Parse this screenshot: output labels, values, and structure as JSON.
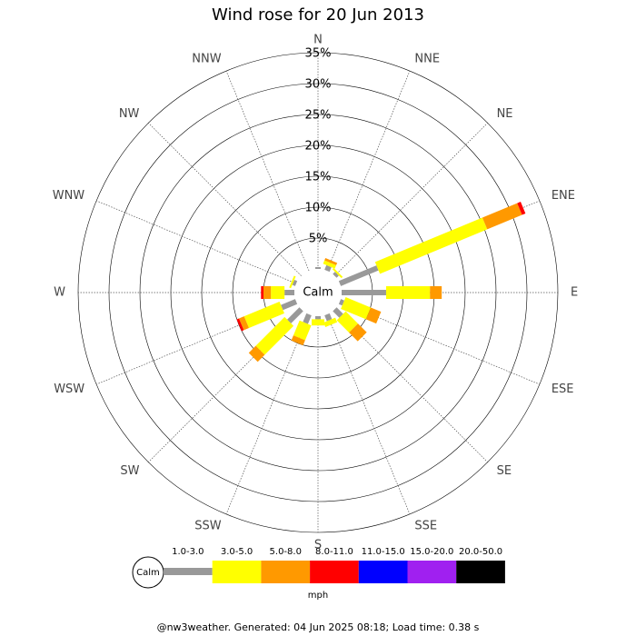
{
  "chart_data": {
    "type": "windrose",
    "title": "Wind rose for 20 Jun 2013",
    "categories": [
      "N",
      "NNE",
      "NE",
      "ENE",
      "E",
      "ESE",
      "SE",
      "SSE",
      "S",
      "SSW",
      "SW",
      "WSW",
      "W",
      "WNW",
      "NW",
      "NNW"
    ],
    "series": [
      {
        "name": "1.0-3.0",
        "color": "#999999",
        "values": [
          0.3,
          0.8,
          0.5,
          6.6,
          7.2,
          0.6,
          1.5,
          1.0,
          0.5,
          1.5,
          2.8,
          2.5,
          1.6,
          0.5,
          0,
          0
        ]
      },
      {
        "name": "3.0-5.0",
        "color": "#ffff00",
        "values": [
          0,
          0.6,
          0.3,
          18.8,
          7.1,
          4.4,
          2.8,
          0.8,
          1.0,
          2.6,
          6.6,
          6.2,
          2.2,
          0.3,
          0,
          0
        ]
      },
      {
        "name": "5.0-8.0",
        "color": "#ff9900",
        "values": [
          0,
          0.4,
          0,
          6.1,
          1.9,
          1.8,
          2.0,
          0,
          0,
          0.9,
          1.6,
          0.9,
          1.2,
          0,
          0,
          0
        ]
      },
      {
        "name": "8.0-11.0",
        "color": "#ff0000",
        "values": [
          0,
          0,
          0,
          0.6,
          0,
          0,
          0,
          0,
          0,
          0,
          0,
          0.4,
          0.4,
          0,
          0,
          0
        ]
      },
      {
        "name": "11.0-15.0",
        "color": "#0000ff",
        "values": [
          0,
          0,
          0,
          0,
          0,
          0,
          0,
          0,
          0,
          0,
          0,
          0,
          0,
          0,
          0,
          0
        ]
      },
      {
        "name": "15.0-20.0",
        "color": "#a020f0",
        "values": [
          0,
          0,
          0,
          0,
          0,
          0,
          0,
          0,
          0,
          0,
          0,
          0,
          0,
          0,
          0,
          0
        ]
      },
      {
        "name": "20.0-50.0",
        "color": "#000000",
        "values": [
          0,
          0,
          0,
          0,
          0,
          0,
          0,
          0,
          0,
          0,
          0,
          0,
          0,
          0,
          0,
          0
        ]
      }
    ],
    "rlim": [
      0,
      35
    ],
    "rticks": [
      {
        "value": 5,
        "label": "5%"
      },
      {
        "value": 10,
        "label": "10%"
      },
      {
        "value": 15,
        "label": "15%"
      },
      {
        "value": 20,
        "label": "20%"
      },
      {
        "value": 25,
        "label": "25%"
      },
      {
        "value": 30,
        "label": "30%"
      },
      {
        "value": 35,
        "label": "35%"
      }
    ],
    "calm_label": "Calm",
    "unit": "mph",
    "footer": "@nw3weather. Generated: 04 Jun 2025 08:18; Load time: 0.38 s"
  }
}
